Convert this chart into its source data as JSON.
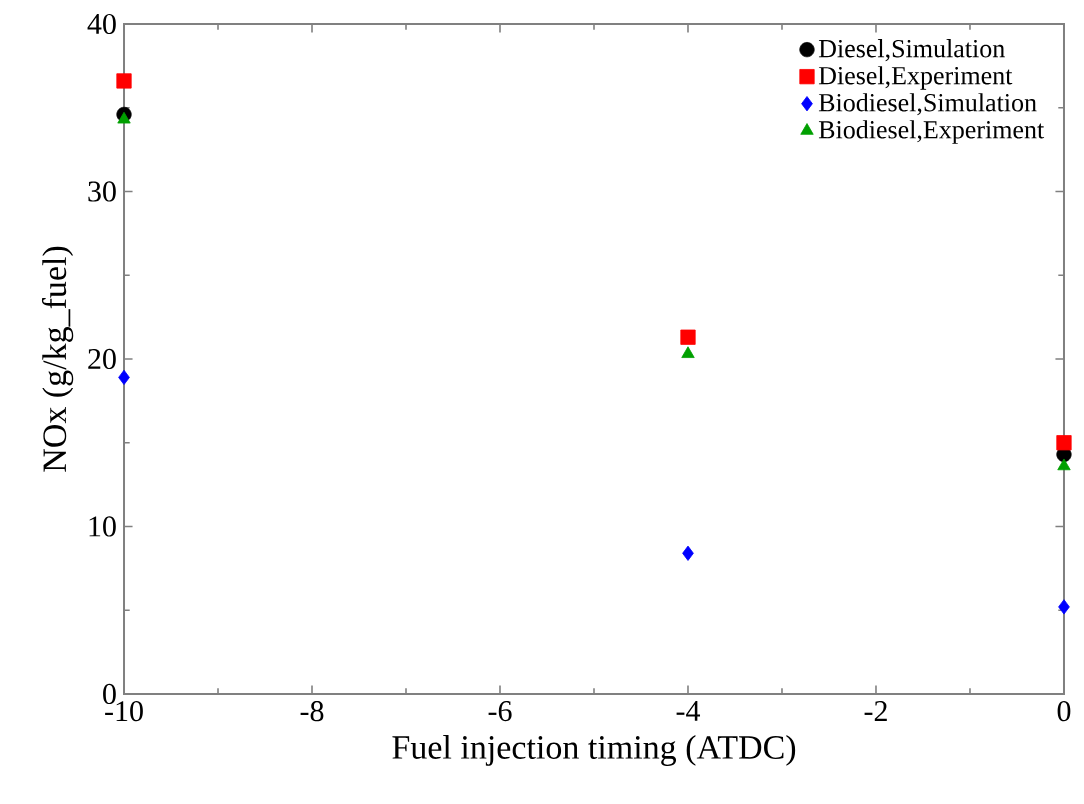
{
  "chart_data": {
    "type": "scatter",
    "xlabel": "Fuel injection timing (ATDC)",
    "ylabel": "NOx (g/kg_fuel)",
    "xlim": [
      -10,
      0
    ],
    "xticks": [
      -10,
      -8,
      -6,
      -4,
      -2,
      0
    ],
    "ylim": [
      0,
      40
    ],
    "yticks": [
      0,
      10,
      20,
      30,
      40
    ],
    "grid": false,
    "legend": "top right",
    "series": [
      {
        "name": "Diesel,Simulation",
        "color": "#000000",
        "marker": "circle",
        "x": [
          -10,
          0
        ],
        "values": [
          34.6,
          14.3
        ]
      },
      {
        "name": "Diesel,Experiment",
        "color": "#ff0000",
        "marker": "square",
        "x": [
          -10,
          -4,
          0
        ],
        "values": [
          36.6,
          21.3,
          15.0
        ]
      },
      {
        "name": "Biodiesel,Simulation",
        "color": "#0000ff",
        "marker": "diamond",
        "x": [
          -10,
          -4,
          0
        ],
        "values": [
          18.9,
          8.4,
          5.2
        ]
      },
      {
        "name": "Biodiesel,Experiment",
        "color": "#00a000",
        "marker": "triangle",
        "x": [
          -10,
          -4,
          0
        ],
        "values": [
          34.3,
          20.3,
          13.6
        ]
      }
    ]
  }
}
